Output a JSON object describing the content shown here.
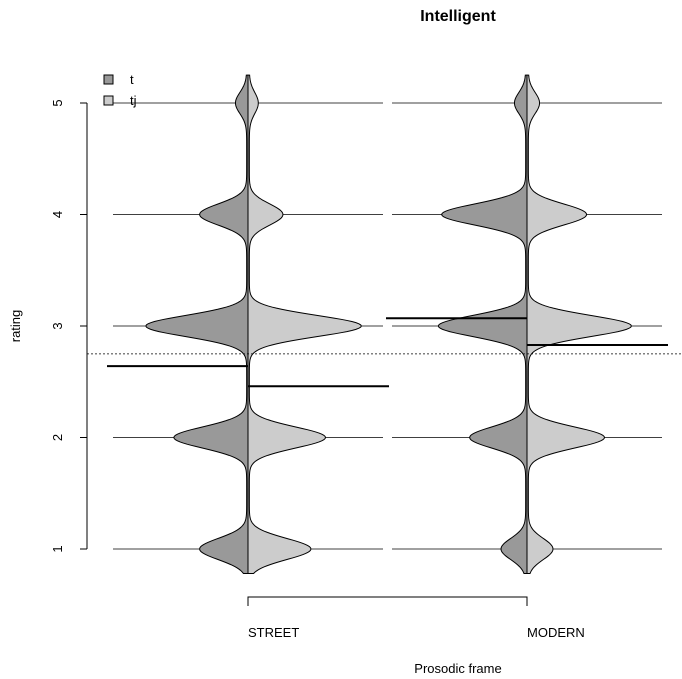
{
  "chart_data": {
    "type": "beanplot",
    "title": "Intelligent",
    "xlabel": "Prosodic frame",
    "ylabel": "rating",
    "ylim": [
      0.6,
      5.4
    ],
    "yticks": [
      "1",
      "2",
      "3",
      "4",
      "5"
    ],
    "categories": [
      "STREET",
      "MODERN"
    ],
    "overall_mean": 2.75,
    "legend": {
      "position": "top-left",
      "entries": [
        {
          "name": "t",
          "color": "#999999"
        },
        {
          "name": "tj",
          "color": "#cccccc"
        }
      ]
    },
    "series": [
      {
        "name": "t",
        "color": "#999999",
        "means": [
          2.64,
          3.07
        ]
      },
      {
        "name": "tj",
        "color": "#cccccc",
        "means": [
          2.46,
          2.83
        ]
      }
    ],
    "densities": {
      "STREET": {
        "t": {
          "peaks": [
            [
              1,
              0.42
            ],
            [
              2,
              0.65
            ],
            [
              3,
              0.9
            ],
            [
              4,
              0.42
            ],
            [
              5,
              0.1
            ]
          ]
        },
        "tj": {
          "peaks": [
            [
              1,
              0.55
            ],
            [
              2,
              0.68
            ],
            [
              3,
              1.0
            ],
            [
              4,
              0.3
            ],
            [
              5,
              0.08
            ]
          ]
        }
      },
      "MODERN": {
        "t": {
          "peaks": [
            [
              1,
              0.22
            ],
            [
              2,
              0.5
            ],
            [
              3,
              0.78
            ],
            [
              4,
              0.75
            ],
            [
              5,
              0.1
            ]
          ]
        },
        "tj": {
          "peaks": [
            [
              1,
              0.22
            ],
            [
              2,
              0.68
            ],
            [
              3,
              0.92
            ],
            [
              4,
              0.52
            ],
            [
              5,
              0.1
            ]
          ]
        }
      }
    }
  }
}
